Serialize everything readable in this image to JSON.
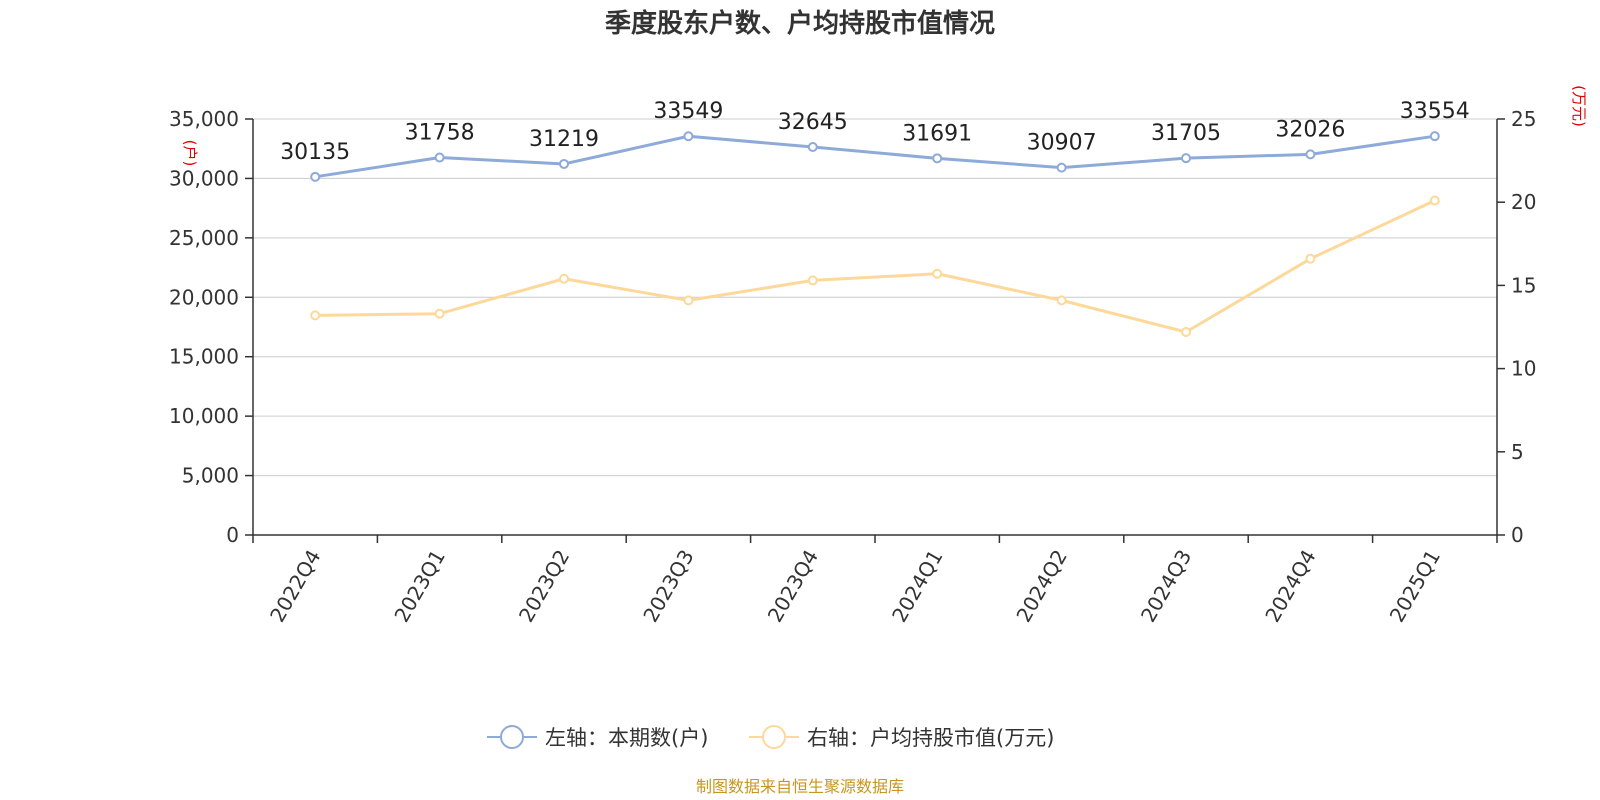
{
  "chart_data": {
    "type": "line",
    "title": "季度股东户数、户均持股市值情况",
    "categories": [
      "2022Q4",
      "2023Q1",
      "2023Q2",
      "2023Q3",
      "2023Q4",
      "2024Q1",
      "2024Q2",
      "2024Q3",
      "2024Q4",
      "2025Q1"
    ],
    "series": [
      {
        "name": "左轴：本期数(户)",
        "axis": "left",
        "color": "#8eaad8",
        "values": [
          30135,
          31758,
          31219,
          33549,
          32645,
          31691,
          30907,
          31705,
          32026,
          33554
        ],
        "data_labels": [
          "30135",
          "31758",
          "31219",
          "33549",
          "32645",
          "31691",
          "30907",
          "31705",
          "32026",
          "33554"
        ]
      },
      {
        "name": "右轴：户均持股市值(万元)",
        "axis": "right",
        "color": "#fcd99a",
        "values": [
          13.2,
          13.3,
          15.4,
          14.1,
          15.3,
          15.7,
          14.1,
          12.2,
          16.6,
          20.1
        ]
      }
    ],
    "left_axis": {
      "unit": "(户)",
      "ylim": [
        0,
        35000
      ],
      "ticks": [
        0,
        5000,
        10000,
        15000,
        20000,
        25000,
        30000,
        35000
      ],
      "tick_labels": [
        "0",
        "5,000",
        "10,000",
        "15,000",
        "20,000",
        "25,000",
        "30,000",
        "35,000"
      ]
    },
    "right_axis": {
      "unit": "(万元)",
      "ylim": [
        0,
        25
      ],
      "ticks": [
        0,
        5,
        10,
        15,
        20,
        25
      ],
      "tick_labels": [
        "0",
        "5",
        "10",
        "15",
        "20",
        "25"
      ]
    },
    "grid": true,
    "legend_position": "bottom",
    "source": "制图数据来自恒生聚源数据库"
  }
}
